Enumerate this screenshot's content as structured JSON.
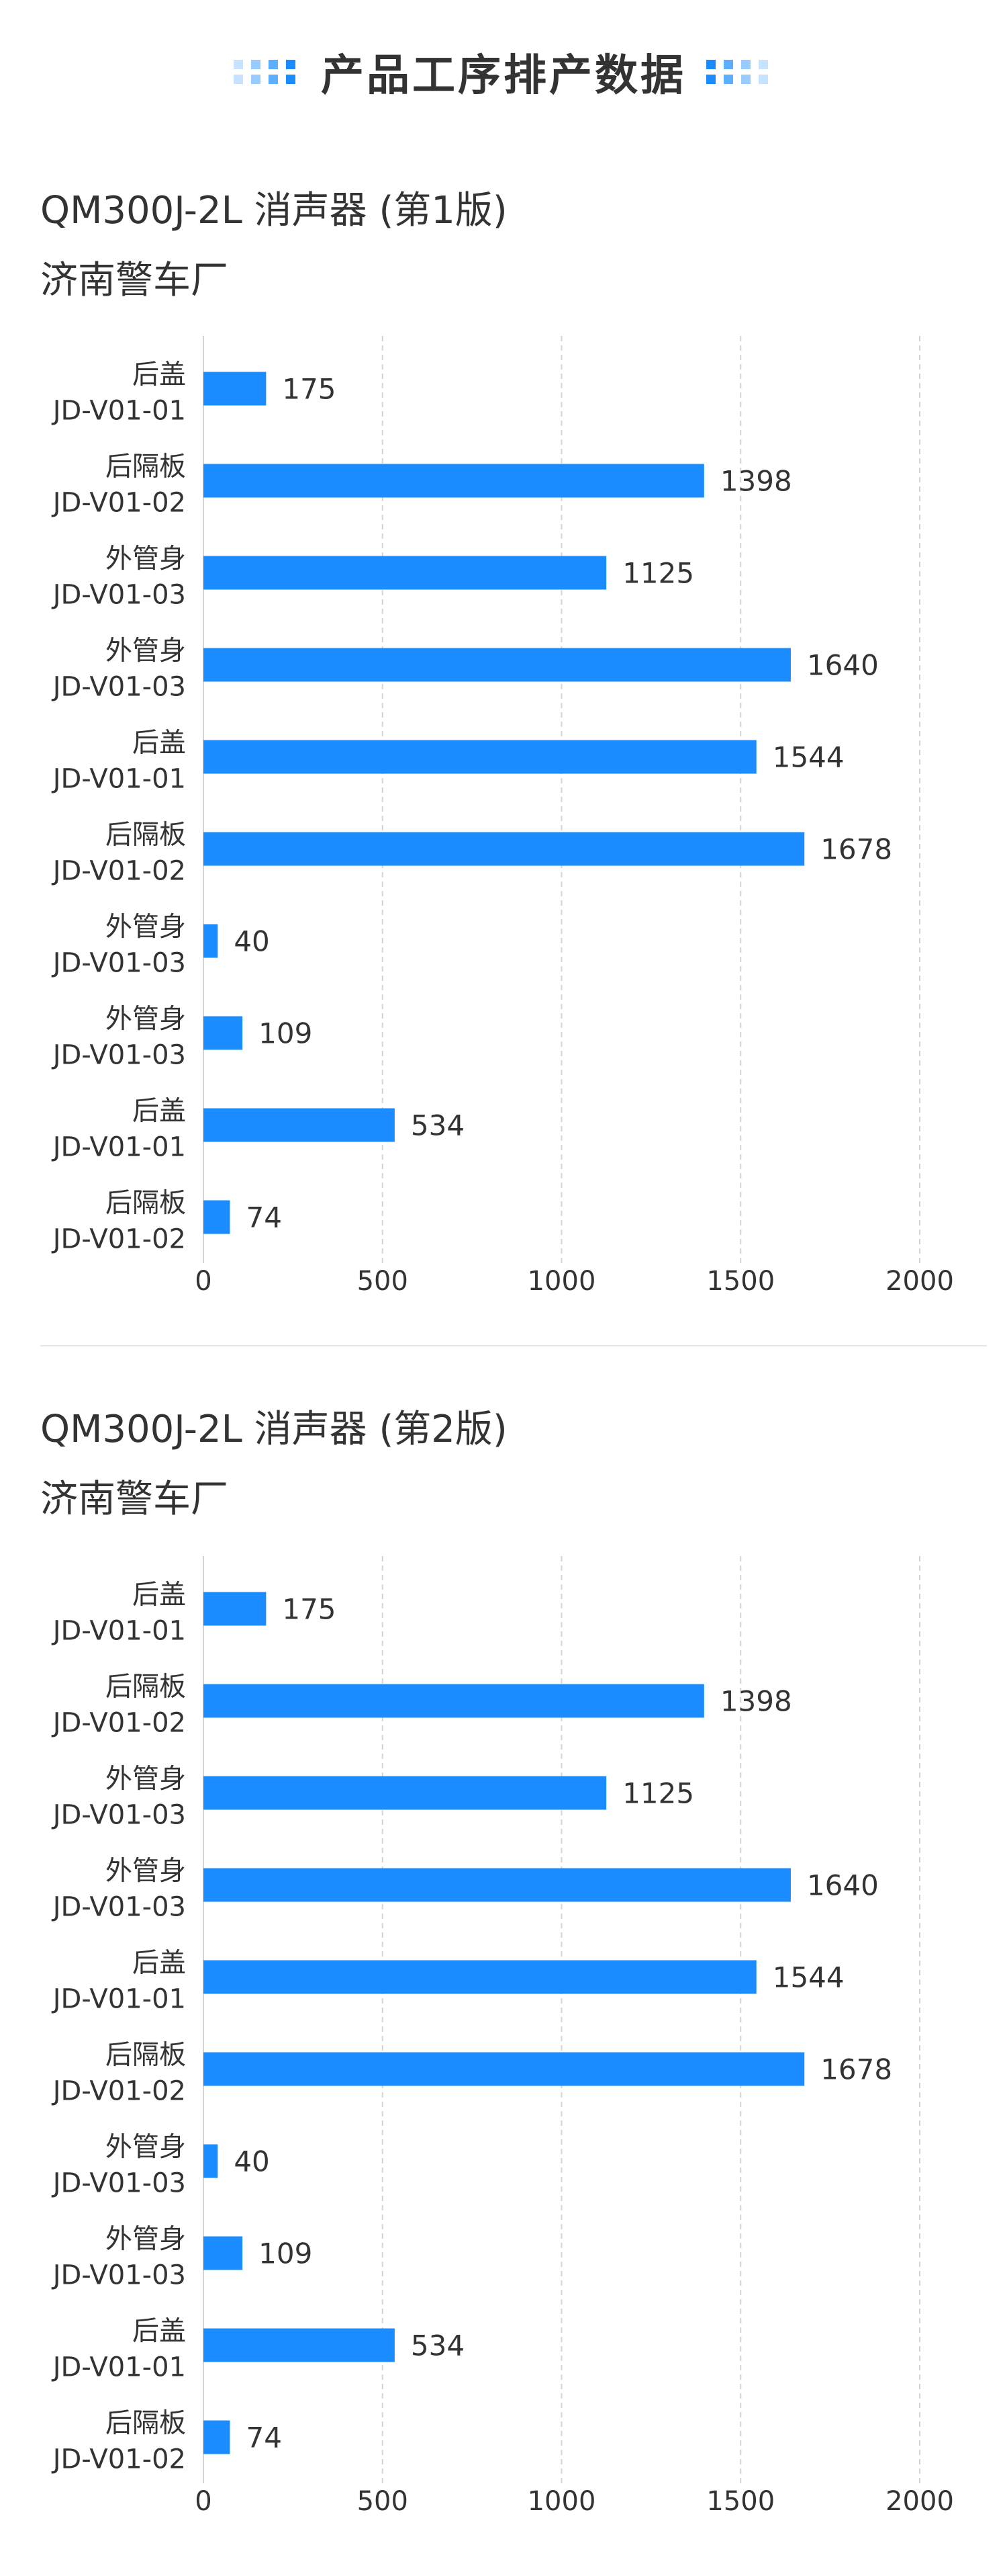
{
  "header": {
    "title": "产品工序排产数据"
  },
  "colors": {
    "bar": "#1a8cff",
    "grid": "#d4d4d4",
    "text": "#333333",
    "deco": "#1a8cff"
  },
  "sections": [
    {
      "title": "QM300J-2L 消声器 (第1版)",
      "subtitle": "济南警车厂"
    },
    {
      "title": "QM300J-2L 消声器 (第2版)",
      "subtitle": "济南警车厂"
    }
  ],
  "chart_data": [
    {
      "type": "bar",
      "orientation": "horizontal",
      "title": "QM300J-2L 消声器 (第1版)",
      "subtitle": "济南警车厂",
      "categories": [
        [
          "后盖",
          "JD-V01-01"
        ],
        [
          "后隔板",
          "JD-V01-02"
        ],
        [
          "外管身",
          "JD-V01-03"
        ],
        [
          "外管身",
          "JD-V01-03"
        ],
        [
          "后盖",
          "JD-V01-01"
        ],
        [
          "后隔板",
          "JD-V01-02"
        ],
        [
          "外管身",
          "JD-V01-03"
        ],
        [
          "外管身",
          "JD-V01-03"
        ],
        [
          "后盖",
          "JD-V01-01"
        ],
        [
          "后隔板",
          "JD-V01-02"
        ]
      ],
      "values": [
        175,
        1398,
        1125,
        1640,
        1544,
        1678,
        40,
        109,
        534,
        74
      ],
      "xlim": [
        0,
        2000
      ],
      "xticks": [
        0,
        500,
        1000,
        1500,
        2000
      ],
      "grid": true,
      "data_labels": true
    },
    {
      "type": "bar",
      "orientation": "horizontal",
      "title": "QM300J-2L 消声器 (第2版)",
      "subtitle": "济南警车厂",
      "categories": [
        [
          "后盖",
          "JD-V01-01"
        ],
        [
          "后隔板",
          "JD-V01-02"
        ],
        [
          "外管身",
          "JD-V01-03"
        ],
        [
          "外管身",
          "JD-V01-03"
        ],
        [
          "后盖",
          "JD-V01-01"
        ],
        [
          "后隔板",
          "JD-V01-02"
        ],
        [
          "外管身",
          "JD-V01-03"
        ],
        [
          "外管身",
          "JD-V01-03"
        ],
        [
          "后盖",
          "JD-V01-01"
        ],
        [
          "后隔板",
          "JD-V01-02"
        ]
      ],
      "values": [
        175,
        1398,
        1125,
        1640,
        1544,
        1678,
        40,
        109,
        534,
        74
      ],
      "xlim": [
        0,
        2000
      ],
      "xticks": [
        0,
        500,
        1000,
        1500,
        2000
      ],
      "grid": true,
      "data_labels": true
    }
  ]
}
